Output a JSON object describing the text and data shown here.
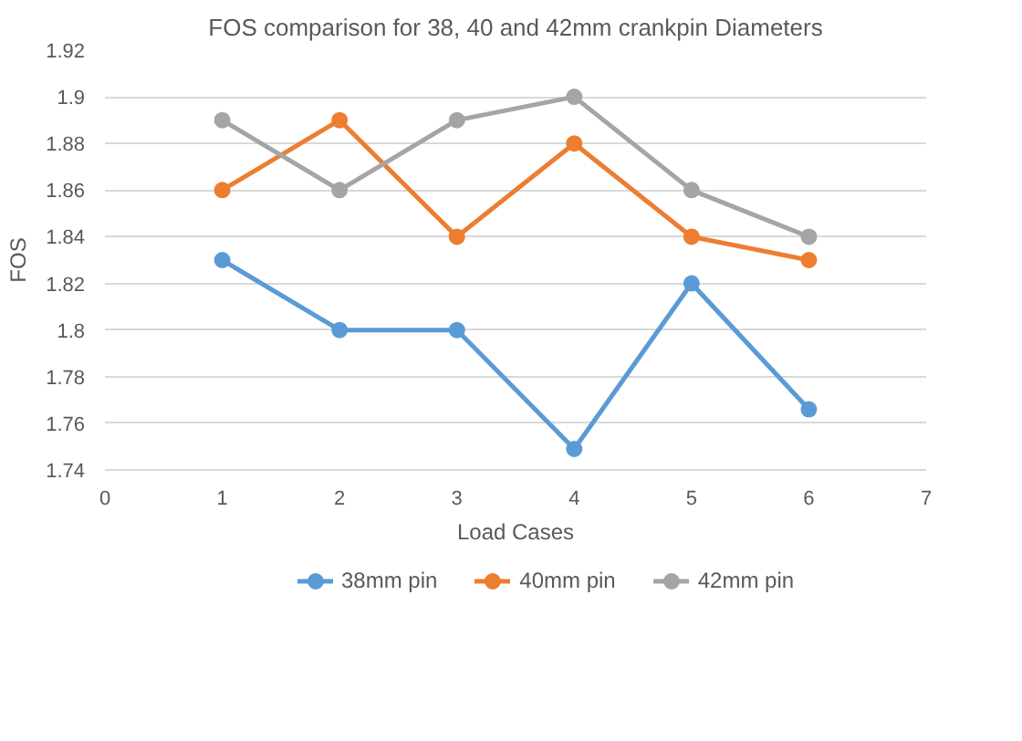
{
  "chart_data": {
    "type": "line",
    "title": "FOS comparison for 38, 40 and 42mm crankpin Diameters",
    "xlabel": "Load Cases",
    "ylabel": "FOS",
    "x": [
      1,
      2,
      3,
      4,
      5,
      6
    ],
    "series": [
      {
        "name": "38mm pin",
        "color": "#5b9bd5",
        "values": [
          1.83,
          1.8,
          1.8,
          1.749,
          1.82,
          1.766
        ]
      },
      {
        "name": "40mm pin",
        "color": "#ed7d31",
        "values": [
          1.86,
          1.89,
          1.84,
          1.88,
          1.84,
          1.83
        ]
      },
      {
        "name": "42mm pin",
        "color": "#a5a5a5",
        "values": [
          1.89,
          1.86,
          1.89,
          1.9,
          1.86,
          1.84
        ]
      }
    ],
    "xlim": [
      0,
      7
    ],
    "xticks": [
      0,
      1,
      2,
      3,
      4,
      5,
      6,
      7
    ],
    "ylim": [
      1.74,
      1.92
    ],
    "yticks": [
      1.74,
      1.76,
      1.78,
      1.8,
      1.82,
      1.84,
      1.86,
      1.88,
      1.9,
      1.92
    ],
    "grid": "y",
    "legend": "bottom",
    "marker": "circle",
    "line_style": "solid"
  }
}
